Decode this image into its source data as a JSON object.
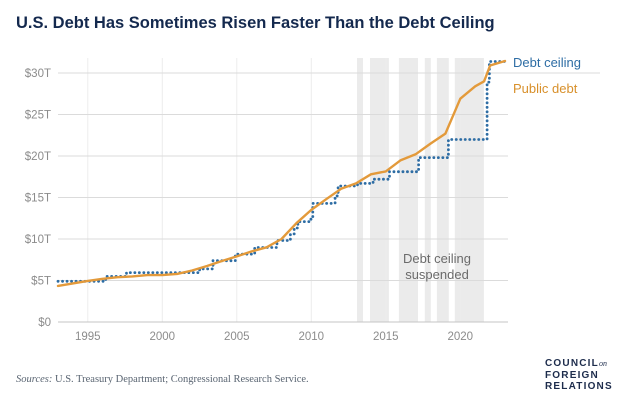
{
  "title": "U.S. Debt Has Sometimes Risen Faster Than the Debt Ceiling",
  "legend": {
    "ceiling_label": "Debt ceiling",
    "debt_label": "Public debt"
  },
  "annotation": {
    "line1": "Debt ceiling",
    "line2": "suspended"
  },
  "footer": {
    "sources_label": "Sources:",
    "sources_text": " U.S. Treasury Department; Congressional Research Service."
  },
  "logo": {
    "line1": "COUNCIL",
    "on": "on",
    "line2": "FOREIGN",
    "line3": "RELATIONS"
  },
  "colors": {
    "title": "#14294E",
    "ceiling_line": "#2E6DA4",
    "debt_line": "#E39A3B",
    "grid": "#DBDBDB",
    "grid_vertical": "#ECECEC",
    "baseline": "#C4C4C4",
    "band": "#E8E8E8",
    "axis_text": "#8C8C8C",
    "annotation_text": "#6B6B6B"
  },
  "chart_data": {
    "type": "line",
    "title": "U.S. Debt Has Sometimes Risen Faster Than the Debt Ceiling",
    "xlabel": "",
    "ylabel": "",
    "xlim": [
      1993,
      2023
    ],
    "ylim": [
      0,
      30
    ],
    "x_ticks": [
      1995,
      2000,
      2005,
      2010,
      2015,
      2020
    ],
    "y_ticks": [
      0,
      5,
      10,
      15,
      20,
      25,
      30
    ],
    "y_tick_labels": [
      "$0",
      "$5T",
      "$10T",
      "$15T",
      "$20T",
      "$25T",
      "$30T"
    ],
    "grid": true,
    "legend_position": "right-of-line-ends",
    "units": "trillions of USD",
    "suspension_bands": [
      [
        2013.07,
        2013.47
      ],
      [
        2013.94,
        2015.21
      ],
      [
        2015.88,
        2017.16
      ],
      [
        2017.62,
        2018.02
      ],
      [
        2018.43,
        2019.23
      ],
      [
        2019.63,
        2021.58
      ]
    ],
    "series": [
      {
        "name": "Debt ceiling",
        "style": "dotted-step",
        "color": "#2E6DA4",
        "points": [
          [
            1993.0,
            4.9
          ],
          [
            1996.2,
            5.5
          ],
          [
            1997.6,
            5.95
          ],
          [
            2002.5,
            6.4
          ],
          [
            2003.4,
            7.38
          ],
          [
            2004.9,
            8.18
          ],
          [
            2006.2,
            8.97
          ],
          [
            2007.7,
            9.82
          ],
          [
            2008.6,
            10.62
          ],
          [
            2008.85,
            11.32
          ],
          [
            2009.1,
            12.1
          ],
          [
            2009.95,
            12.39
          ],
          [
            2010.1,
            14.29
          ],
          [
            2011.6,
            15.19
          ],
          [
            2011.8,
            16.39
          ],
          [
            2013.1,
            16.7
          ],
          [
            2014.15,
            17.21
          ],
          [
            2015.25,
            18.11
          ],
          [
            2017.2,
            19.81
          ],
          [
            2019.2,
            21.99
          ],
          [
            2021.8,
            28.9
          ],
          [
            2021.95,
            31.38
          ],
          [
            2023.0,
            31.45
          ]
        ]
      },
      {
        "name": "Public debt",
        "style": "solid",
        "color": "#E39A3B",
        "points": [
          [
            1993,
            4.35
          ],
          [
            1994,
            4.65
          ],
          [
            1995,
            4.95
          ],
          [
            1996,
            5.2
          ],
          [
            1997,
            5.4
          ],
          [
            1998,
            5.5
          ],
          [
            1999,
            5.65
          ],
          [
            2000,
            5.65
          ],
          [
            2001,
            5.8
          ],
          [
            2002,
            6.2
          ],
          [
            2003,
            6.75
          ],
          [
            2004,
            7.35
          ],
          [
            2005,
            7.9
          ],
          [
            2006,
            8.5
          ],
          [
            2007,
            9.0
          ],
          [
            2008,
            10.0
          ],
          [
            2009,
            11.9
          ],
          [
            2010,
            13.5
          ],
          [
            2011,
            14.8
          ],
          [
            2012,
            16.05
          ],
          [
            2013,
            16.7
          ],
          [
            2014,
            17.8
          ],
          [
            2015,
            18.15
          ],
          [
            2016,
            19.5
          ],
          [
            2017,
            20.2
          ],
          [
            2018,
            21.5
          ],
          [
            2019,
            22.7
          ],
          [
            2020,
            26.9
          ],
          [
            2021,
            28.4
          ],
          [
            2021.6,
            29.0
          ],
          [
            2022,
            30.9
          ],
          [
            2023,
            31.45
          ]
        ]
      }
    ]
  }
}
